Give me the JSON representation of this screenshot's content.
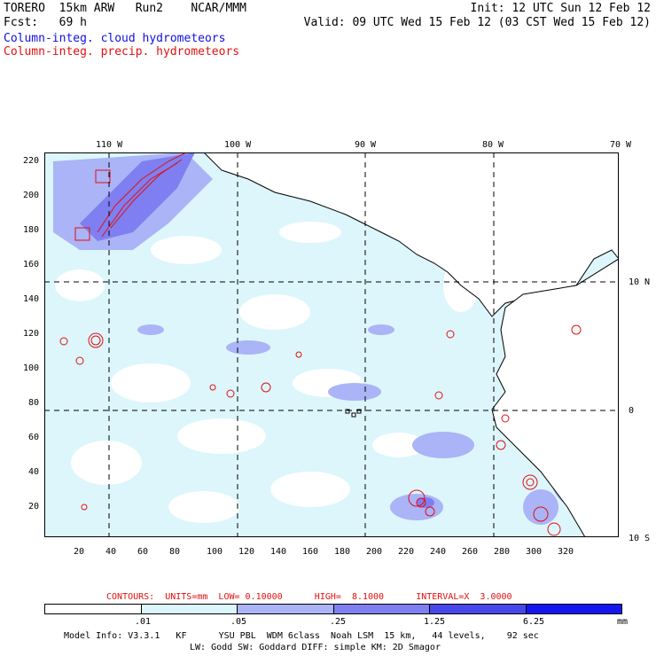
{
  "header": {
    "line1_left": "TORERO  15km ARW   Run2    NCAR/MMM",
    "line1_right": "Init: 12 UTC Sun 12 Feb 12",
    "line2_left": "Fcst:   69 h",
    "line2_right": "Valid: 09 UTC Wed 15 Feb 12 (03 CST Wed 15 Feb 12)",
    "cloud_label": "Column-integ. cloud hydrometeors",
    "precip_label": "Column-integ. precip. hydrometeors"
  },
  "map": {
    "lon_labels": [
      "110 W",
      "100 W",
      "90 W",
      "80 W",
      "70 W"
    ],
    "lat_labels": [
      "10 N",
      "0",
      "10 S"
    ],
    "y_ticks": [
      "220",
      "200",
      "180",
      "160",
      "140",
      "120",
      "100",
      "80",
      "60",
      "40",
      "20"
    ],
    "x_ticks": [
      "20",
      "40",
      "60",
      "80",
      "100",
      "120",
      "140",
      "160",
      "180",
      "200",
      "220",
      "240",
      "260",
      "280",
      "300",
      "320"
    ]
  },
  "contours": {
    "text": "CONTOURS:  UNITS=mm  LOW= 0.10000      HIGH=  8.1000      INTERVAL=X  3.0000",
    "color": "#e01010"
  },
  "legend": {
    "labels": [
      ".01",
      ".05",
      ".25",
      "1.25",
      "6.25"
    ],
    "units": "mm",
    "colors": [
      "#ffffff",
      "#dcf6fc",
      "#aab4f6",
      "#7f7ff2",
      "#4848ea",
      "#1616f2"
    ]
  },
  "footer": {
    "line1": "Model Info: V3.3.1   KF      YSU PBL  WDM 6class  Noah LSM  15 km,   44 levels,    92 sec",
    "line2": "LW: Godd SW: Goddard DIFF: simple KM: 2D Smagor"
  }
}
